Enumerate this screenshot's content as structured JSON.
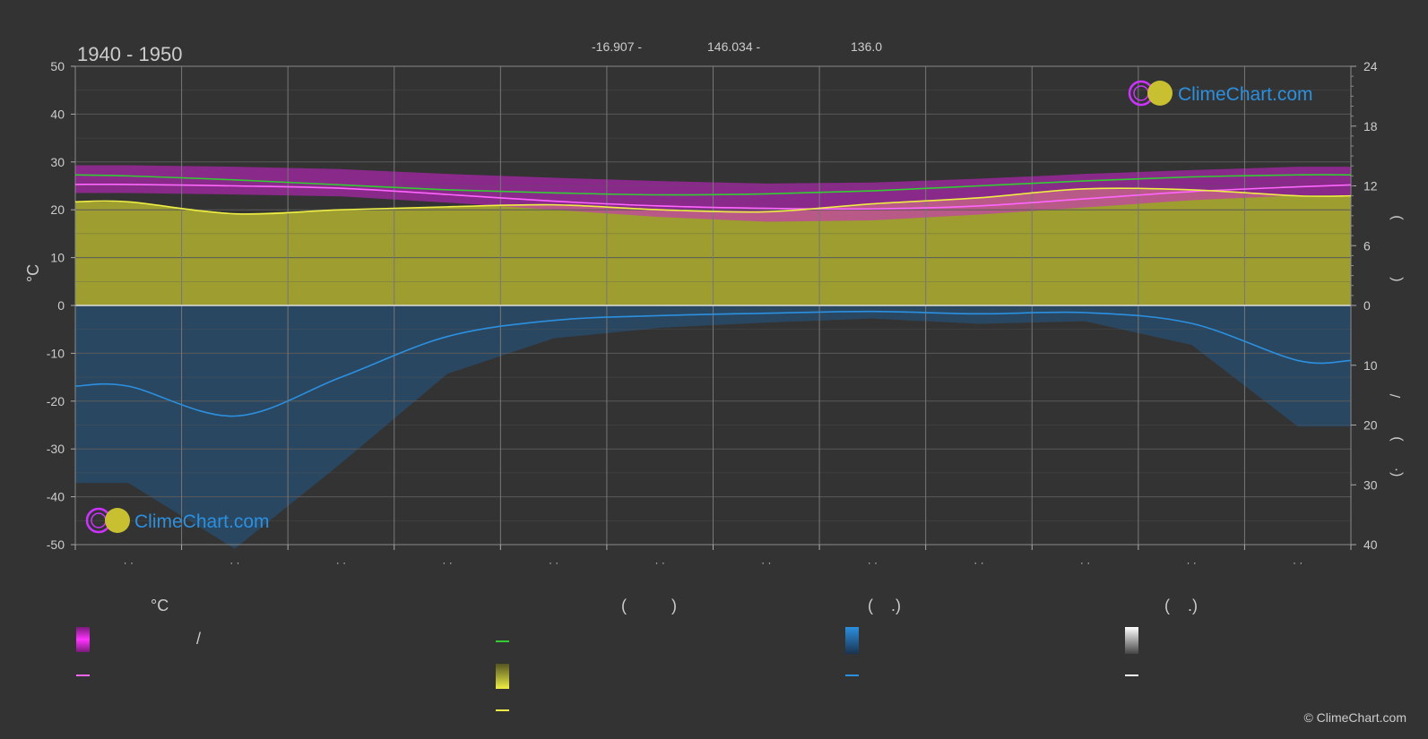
{
  "header": {
    "period": "1940 - 1950",
    "lat": "-16.907 -",
    "lon": "146.034 -",
    "elev": "136.0"
  },
  "watermark": {
    "top": "ClimeChart.com",
    "bottom": "ClimeChart.com"
  },
  "copyright": "© ClimeChart.com",
  "legend": {
    "col1_title": "°C",
    "col1_row1_slash": "/",
    "col2_title": "(          )",
    "col3_title": "(    .)",
    "col4_title": "(    .)"
  },
  "colors": {
    "background": "#333333",
    "temp_band": "#d020d0",
    "temp_mean": "#ff66ff",
    "daylight": "#33cc33",
    "sunshine_band": "#b0b030",
    "sunshine": "#eeee44",
    "precip_band": "#1f5f99",
    "precip": "#2b90e0",
    "grid": "#5a5a5a",
    "zero_line": "#dddddd"
  },
  "chart_data": {
    "type": "line",
    "months": [
      0.5,
      1.5,
      2.5,
      3.5,
      4.5,
      5.5,
      6.5,
      7.5,
      8.5,
      9.5,
      10.5,
      11.5
    ],
    "month_labels": [
      "· ·",
      "· ·",
      "· ·",
      "· ·",
      "· ·",
      "· ·",
      "· ·",
      "· ·",
      "· ·",
      "· ·",
      "· ·",
      "· ·"
    ],
    "y_left": {
      "label": "°C",
      "min": -50,
      "max": 50,
      "ticks": [
        50,
        40,
        30,
        20,
        10,
        0,
        -10,
        -20,
        -30,
        -40,
        -50
      ]
    },
    "y_right_top": {
      "min": 0,
      "max": 24,
      "ticks": [
        24,
        18,
        12,
        6,
        0
      ],
      "label_chars": [
        ")",
        "("
      ]
    },
    "y_right_bottom": {
      "min": 0,
      "max": 40,
      "ticks": [
        10,
        20,
        30,
        40
      ],
      "label_chars": [
        "/",
        ")",
        "(·"
      ]
    },
    "series": [
      {
        "key": "temp_max",
        "x": [
          0.5,
          1.5,
          2.5,
          3.5,
          4.5,
          5.5,
          6.5,
          7.5,
          8.5,
          9.5,
          10.5,
          11.5
        ],
        "values": [
          26.8,
          26.5,
          26.0,
          25.0,
          24.2,
          23.5,
          23.0,
          23.2,
          24.0,
          25.0,
          25.8,
          26.5
        ]
      },
      {
        "key": "temp_min",
        "x": [
          0.5,
          1.5,
          2.5,
          3.5,
          4.5,
          5.5,
          6.5,
          7.5,
          8.5,
          9.5,
          10.5,
          11.5
        ],
        "values": [
          23.5,
          23.2,
          22.8,
          21.5,
          20.0,
          18.5,
          17.5,
          17.8,
          19.0,
          20.5,
          22.0,
          23.0
        ]
      },
      {
        "key": "temp_mean",
        "x": [
          0,
          0.5,
          1.5,
          2.5,
          3.5,
          4.5,
          5.5,
          6.5,
          7.5,
          8.5,
          9.5,
          10.5,
          11.5,
          12
        ],
        "values": [
          25.3,
          25.3,
          25.0,
          24.5,
          23.2,
          21.8,
          20.8,
          20.3,
          20.2,
          20.8,
          22.3,
          23.8,
          24.8,
          25.2
        ]
      },
      {
        "key": "daylight_hours",
        "x": [
          0,
          0.5,
          1.5,
          2.5,
          3.5,
          4.5,
          5.5,
          6.5,
          7.5,
          8.5,
          9.5,
          10.5,
          11.5,
          12
        ],
        "values": [
          13.1,
          13.0,
          12.6,
          12.1,
          11.6,
          11.3,
          11.1,
          11.2,
          11.5,
          12.0,
          12.5,
          12.9,
          13.1,
          13.1
        ]
      },
      {
        "key": "sunshine_hours",
        "x": [
          0,
          0.5,
          1.5,
          2.5,
          3.5,
          4.5,
          5.5,
          6.5,
          7.5,
          8.5,
          9.5,
          10.5,
          11.5,
          12
        ],
        "values": [
          10.4,
          10.4,
          9.2,
          9.6,
          9.9,
          10.1,
          9.6,
          9.4,
          10.2,
          10.8,
          11.7,
          11.6,
          11.0,
          11.0
        ]
      },
      {
        "key": "precipitation_daily_mm",
        "x": [
          0,
          0.5,
          1.5,
          2.5,
          3.5,
          4.5,
          5.5,
          6.5,
          7.5,
          8.5,
          9.5,
          10.5,
          11.5,
          12
        ],
        "values": [
          13.5,
          13.5,
          18.5,
          12.0,
          5.2,
          2.5,
          1.7,
          1.3,
          1.0,
          1.4,
          1.2,
          3.0,
          9.2,
          9.2
        ]
      }
    ],
    "grid": true
  }
}
